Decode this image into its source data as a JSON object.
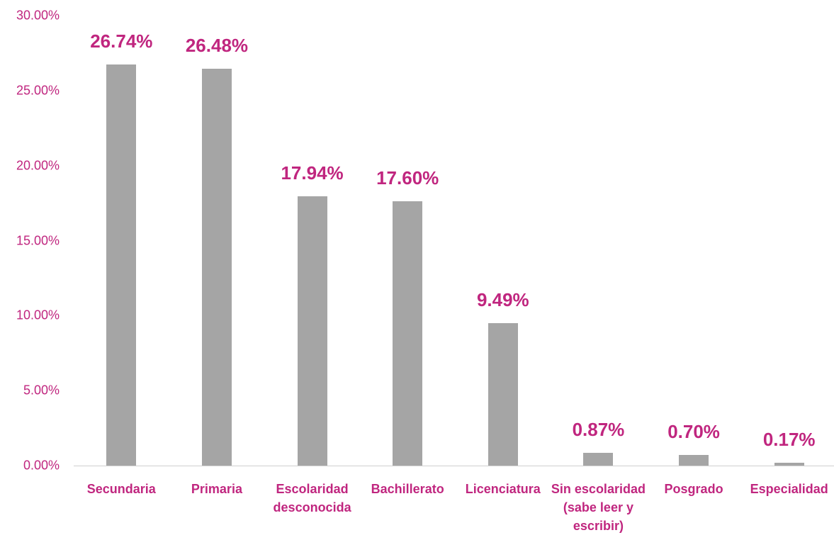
{
  "chart_data": {
    "type": "bar",
    "categories": [
      "Secundaria",
      "Primaria",
      "Escolaridad desconocida",
      "Bachillerato",
      "Licenciatura",
      "Sin escolaridad (sabe leer y escribir)",
      "Posgrado",
      "Especialidad"
    ],
    "values": [
      26.74,
      26.48,
      17.94,
      17.6,
      9.49,
      0.87,
      0.7,
      0.17
    ],
    "value_labels": [
      "26.74%",
      "26.48%",
      "17.94%",
      "17.60%",
      "9.49%",
      "0.87%",
      "0.70%",
      "0.17%"
    ],
    "color": "#a5a5a5",
    "ylim": [
      0,
      30
    ],
    "yticks": [
      {
        "value": 0,
        "label": "0.00%"
      },
      {
        "value": 5,
        "label": "5.00%"
      },
      {
        "value": 10,
        "label": "10.00%"
      },
      {
        "value": 15,
        "label": "15.00%"
      },
      {
        "value": 20,
        "label": "20.00%"
      },
      {
        "value": 25,
        "label": "25.00%"
      },
      {
        "value": 30,
        "label": "30.00%"
      }
    ],
    "grid": false
  }
}
